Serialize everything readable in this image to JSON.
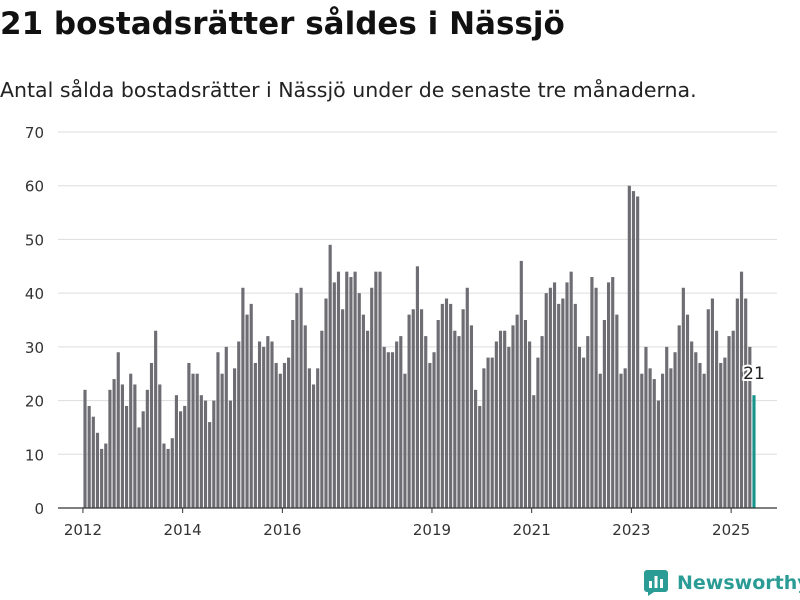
{
  "header": {
    "title": "21 bostadsrätter såldes i Nässjö",
    "subtitle": "Antal sålda bostadsrätter i Nässjö under de senaste tre månaderna."
  },
  "brand": {
    "name": "Newsworthy",
    "icon": "newsworthy-logo-icon",
    "color": "#2b9c95"
  },
  "colors": {
    "bar": "#6e6d73",
    "highlight": "#18948c",
    "grid": "#dddddd",
    "axis": "#333333"
  },
  "chart_data": {
    "type": "bar",
    "title": "",
    "xlabel": "",
    "ylabel": "",
    "ylim": [
      0,
      70
    ],
    "yticks": [
      0,
      10,
      20,
      30,
      40,
      50,
      60,
      70
    ],
    "grid": true,
    "xlim": [
      2011.5,
      2025.92
    ],
    "xticks": [
      2012,
      2014,
      2016,
      2019,
      2021,
      2023,
      2025
    ],
    "xtick_labels": [
      "2012",
      "2014",
      "2016",
      "2019",
      "2021",
      "2023",
      "2025"
    ],
    "bar_width_months": 1,
    "series": [
      {
        "x_start": 2012.0,
        "values": [
          22,
          19,
          17,
          14,
          11,
          12,
          22,
          24,
          29,
          23,
          19,
          25,
          23,
          15,
          18,
          22,
          27,
          33,
          23,
          12,
          11,
          13,
          21,
          18,
          19,
          27,
          25,
          25,
          21,
          20,
          16,
          20,
          29,
          25,
          30,
          20,
          26,
          31,
          41,
          36,
          38,
          27,
          31,
          30,
          32,
          31,
          27,
          25,
          27,
          28,
          35,
          40,
          41,
          34,
          26,
          23,
          26,
          33,
          39,
          49,
          42,
          44,
          37,
          44,
          43,
          44,
          40,
          36,
          33,
          41,
          44,
          44,
          30,
          29,
          29,
          31,
          32,
          25,
          36,
          37,
          45,
          37,
          32,
          27,
          29,
          35,
          38,
          39,
          38,
          33,
          32,
          37,
          41,
          34,
          22,
          19,
          26,
          28,
          28,
          31,
          33,
          33,
          30,
          34,
          36,
          46,
          35,
          31,
          21,
          28,
          32,
          40,
          41,
          42,
          38,
          39,
          42,
          44,
          38,
          30,
          28,
          32,
          43,
          41,
          25,
          35,
          42,
          43,
          36,
          25,
          26,
          60,
          59,
          58,
          25,
          30,
          26,
          24,
          20,
          25,
          30,
          26,
          29,
          34,
          41,
          36,
          31,
          29,
          27,
          25,
          37,
          39,
          33,
          27,
          28,
          32,
          33,
          39,
          44,
          39,
          30,
          21
        ]
      }
    ],
    "highlight": {
      "index": 161,
      "label": "21"
    }
  }
}
